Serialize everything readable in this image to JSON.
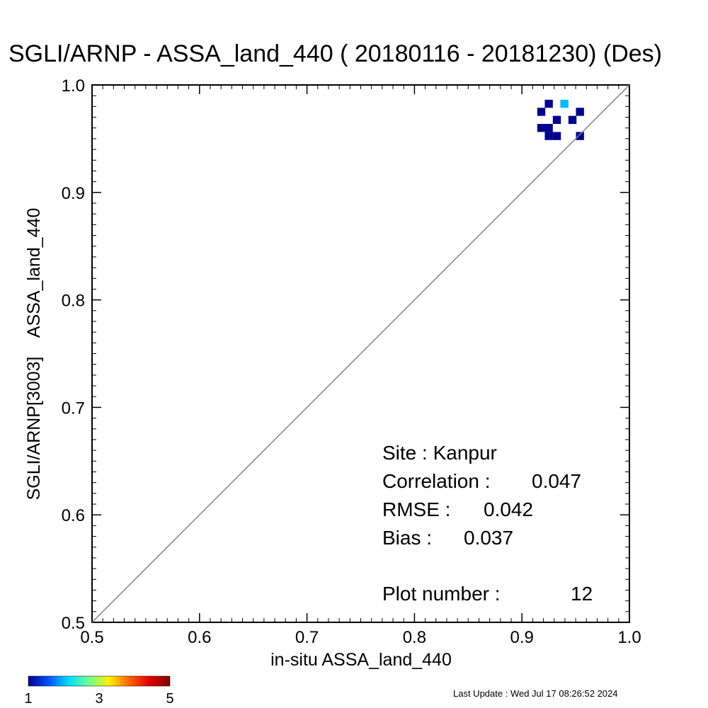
{
  "chart_data": {
    "type": "heatmap",
    "title": "SGLI/ARNP - ASSA_land_440 ( 20180116 - 20181230) (Des)",
    "xlabel": "in-situ ASSA_land_440",
    "ylabel": "SGLI/ARNP[3003]    ASSA_land_440",
    "xlim": [
      0.5,
      1.0
    ],
    "ylim": [
      0.5,
      1.0
    ],
    "x_ticks": [
      "0.5",
      "0.6",
      "0.7",
      "0.8",
      "0.9",
      "1.0"
    ],
    "y_ticks": [
      "0.5",
      "0.6",
      "0.7",
      "0.8",
      "0.9",
      "1.0"
    ],
    "one_to_one_line": true,
    "grid": false,
    "bin_width": 0.0075,
    "cells": [
      {
        "x": 0.925,
        "y": 0.9825,
        "count": 1
      },
      {
        "x": 0.9395,
        "y": 0.9825,
        "count": 2
      },
      {
        "x": 0.918,
        "y": 0.975,
        "count": 1
      },
      {
        "x": 0.954,
        "y": 0.975,
        "count": 1
      },
      {
        "x": 0.9325,
        "y": 0.9675,
        "count": 1
      },
      {
        "x": 0.947,
        "y": 0.9675,
        "count": 1
      },
      {
        "x": 0.918,
        "y": 0.96,
        "count": 1
      },
      {
        "x": 0.925,
        "y": 0.96,
        "count": 1
      },
      {
        "x": 0.925,
        "y": 0.9525,
        "count": 1
      },
      {
        "x": 0.9325,
        "y": 0.9525,
        "count": 1
      },
      {
        "x": 0.954,
        "y": 0.9525,
        "count": 1
      }
    ],
    "colorbar": {
      "min": 1,
      "max": 5,
      "tick_labels": [
        "1",
        "3",
        "5"
      ],
      "colors": [
        "#00008f",
        "#0050ff",
        "#00dfff",
        "#70ff8f",
        "#ffef00",
        "#ff6000",
        "#df0000",
        "#800000"
      ]
    }
  },
  "stats": {
    "site": "Site : Kanpur",
    "correlation_label": "Correlation :",
    "correlation_value": "0.047",
    "rmse_label": "RMSE :",
    "rmse_value": "0.042",
    "bias_label": "Bias :",
    "bias_value": "0.037",
    "plot_number_label": "Plot number :",
    "plot_number_value": "12"
  },
  "footer": {
    "last_update": "Last Update : Wed Jul 17 08:26:52 2024"
  }
}
